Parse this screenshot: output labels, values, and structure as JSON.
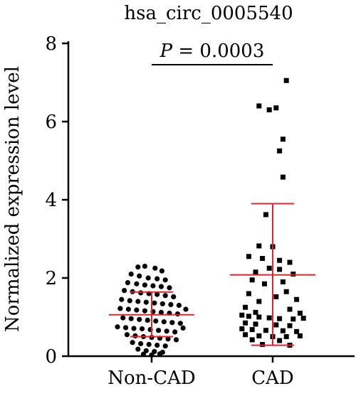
{
  "chart_data": {
    "type": "scatter",
    "title": "hsa_circ_0005540",
    "ylabel": "Normalized expression level",
    "xlabel": "",
    "ylim": [
      0,
      8
    ],
    "yticks": [
      "0",
      "2",
      "4",
      "6",
      "8"
    ],
    "categories": [
      "Non-CAD",
      "CAD"
    ],
    "annotation": {
      "p_italic": "P",
      "p_text": " = 0.0003"
    },
    "error_bar_color": "#e8202a",
    "point_color": "#000000",
    "groups": [
      {
        "category": "Non-CAD",
        "marker": "circle",
        "mean": 1.06,
        "lower": 0.5,
        "upper": 1.64,
        "points": [
          [
            -0.2,
            2.28
          ],
          [
            -0.1,
            2.3
          ],
          [
            0.05,
            2.25
          ],
          [
            0.15,
            2.18
          ],
          [
            -0.3,
            2.1
          ],
          [
            -0.18,
            2.05
          ],
          [
            -0.05,
            2.0
          ],
          [
            0.08,
            1.98
          ],
          [
            0.2,
            1.95
          ],
          [
            -0.35,
            1.88
          ],
          [
            -0.22,
            1.85
          ],
          [
            -0.1,
            1.82
          ],
          [
            0.02,
            1.8
          ],
          [
            0.14,
            1.78
          ],
          [
            0.26,
            1.75
          ],
          [
            -0.4,
            1.68
          ],
          [
            -0.28,
            1.65
          ],
          [
            -0.16,
            1.62
          ],
          [
            -0.04,
            1.6
          ],
          [
            0.08,
            1.58
          ],
          [
            0.2,
            1.55
          ],
          [
            0.32,
            1.52
          ],
          [
            -0.44,
            1.45
          ],
          [
            -0.32,
            1.42
          ],
          [
            -0.2,
            1.4
          ],
          [
            -0.08,
            1.38
          ],
          [
            0.04,
            1.36
          ],
          [
            0.16,
            1.34
          ],
          [
            0.28,
            1.32
          ],
          [
            0.4,
            1.3
          ],
          [
            -0.46,
            1.22
          ],
          [
            -0.34,
            1.2
          ],
          [
            -0.22,
            1.18
          ],
          [
            -0.1,
            1.16
          ],
          [
            0.02,
            1.14
          ],
          [
            0.14,
            1.12
          ],
          [
            0.26,
            1.1
          ],
          [
            0.38,
            1.08
          ],
          [
            0.5,
            1.2
          ],
          [
            -0.42,
            0.98
          ],
          [
            -0.3,
            0.96
          ],
          [
            -0.18,
            0.94
          ],
          [
            -0.06,
            0.92
          ],
          [
            0.06,
            0.9
          ],
          [
            0.18,
            0.88
          ],
          [
            0.3,
            0.86
          ],
          [
            0.42,
            0.84
          ],
          [
            -0.5,
            0.75
          ],
          [
            -0.38,
            0.73
          ],
          [
            -0.26,
            0.71
          ],
          [
            -0.14,
            0.7
          ],
          [
            -0.02,
            0.68
          ],
          [
            0.1,
            0.66
          ],
          [
            0.22,
            0.64
          ],
          [
            0.34,
            0.62
          ],
          [
            0.46,
            0.72
          ],
          [
            -0.36,
            0.55
          ],
          [
            -0.24,
            0.52
          ],
          [
            -0.12,
            0.5
          ],
          [
            0.0,
            0.48
          ],
          [
            0.12,
            0.46
          ],
          [
            0.24,
            0.44
          ],
          [
            0.36,
            0.42
          ],
          [
            -0.28,
            0.35
          ],
          [
            -0.16,
            0.32
          ],
          [
            -0.04,
            0.3
          ],
          [
            0.08,
            0.28
          ],
          [
            0.2,
            0.26
          ],
          [
            -0.2,
            0.18
          ],
          [
            -0.08,
            0.14
          ],
          [
            0.04,
            0.12
          ],
          [
            0.16,
            0.1
          ],
          [
            -0.12,
            0.05
          ],
          [
            0.0,
            0.03
          ],
          [
            0.12,
            0.06
          ]
        ]
      },
      {
        "category": "CAD",
        "marker": "square",
        "mean": 2.08,
        "lower": 0.28,
        "upper": 3.9,
        "points": [
          [
            0.2,
            7.05
          ],
          [
            -0.2,
            6.4
          ],
          [
            0.05,
            6.35
          ],
          [
            -0.05,
            6.3
          ],
          [
            0.15,
            5.55
          ],
          [
            0.1,
            5.25
          ],
          [
            0.15,
            4.58
          ],
          [
            -0.1,
            3.62
          ],
          [
            -0.2,
            2.82
          ],
          [
            0.0,
            2.8
          ],
          [
            -0.35,
            2.55
          ],
          [
            -0.15,
            2.5
          ],
          [
            0.1,
            2.45
          ],
          [
            0.25,
            2.4
          ],
          [
            -0.05,
            2.25
          ],
          [
            0.1,
            2.22
          ],
          [
            -0.25,
            2.15
          ],
          [
            0.3,
            2.1
          ],
          [
            -0.3,
            1.95
          ],
          [
            0.15,
            1.9
          ],
          [
            -0.12,
            1.85
          ],
          [
            0.2,
            1.65
          ],
          [
            -0.35,
            1.6
          ],
          [
            0.05,
            1.52
          ],
          [
            0.35,
            1.45
          ],
          [
            -0.2,
            1.4
          ],
          [
            -0.4,
            1.25
          ],
          [
            0.25,
            1.2
          ],
          [
            -0.25,
            1.12
          ],
          [
            0.4,
            1.1
          ],
          [
            -0.45,
            1.05
          ],
          [
            -0.35,
            1.02
          ],
          [
            -0.2,
            1.0
          ],
          [
            -0.05,
            0.98
          ],
          [
            0.1,
            0.96
          ],
          [
            0.3,
            0.95
          ],
          [
            0.45,
            0.97
          ],
          [
            -0.4,
            0.85
          ],
          [
            -0.25,
            0.82
          ],
          [
            0.05,
            0.8
          ],
          [
            0.25,
            0.78
          ],
          [
            -0.45,
            0.7
          ],
          [
            -0.3,
            0.68
          ],
          [
            -0.1,
            0.66
          ],
          [
            0.15,
            0.65
          ],
          [
            0.35,
            0.63
          ],
          [
            -0.4,
            0.55
          ],
          [
            -0.2,
            0.52
          ],
          [
            0.0,
            0.5
          ],
          [
            0.2,
            0.5
          ],
          [
            0.4,
            0.52
          ],
          [
            -0.3,
            0.42
          ],
          [
            0.1,
            0.4
          ],
          [
            -0.15,
            0.3
          ],
          [
            0.25,
            0.28
          ]
        ]
      }
    ]
  }
}
